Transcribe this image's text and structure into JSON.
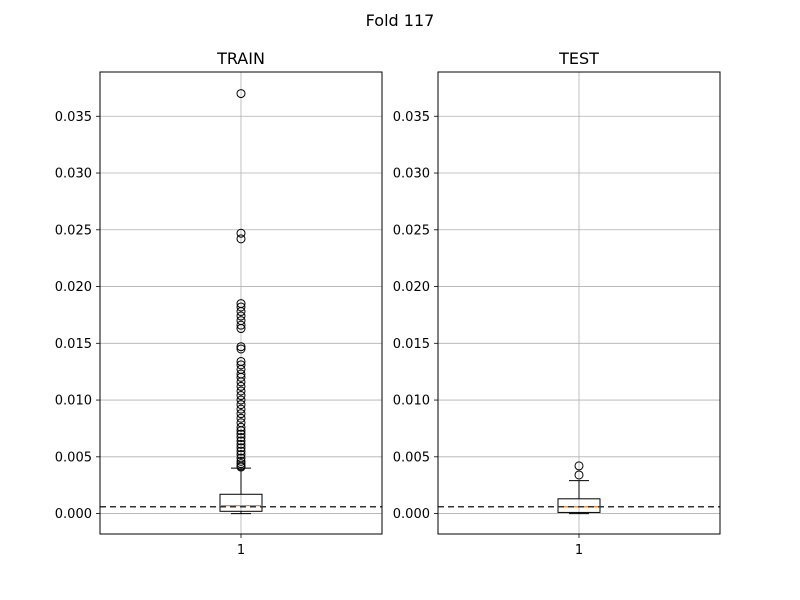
{
  "figure": {
    "title": "Fold 117"
  },
  "colors": {
    "median": "#ff7f0e",
    "box": "#000000",
    "grid": "#b0b0b0",
    "reference_line": "#333333",
    "background": "#ffffff"
  },
  "chart_data": [
    {
      "type": "box",
      "title": "TRAIN",
      "xlabel": "",
      "ylabel": "",
      "categories": [
        "1"
      ],
      "ylim": [
        -0.0018,
        0.0389
      ],
      "yticks": [
        0.0,
        0.005,
        0.01,
        0.015,
        0.02,
        0.025,
        0.03,
        0.035
      ],
      "ytick_labels": [
        "0.000",
        "0.005",
        "0.010",
        "0.015",
        "0.020",
        "0.025",
        "0.030",
        "0.035"
      ],
      "grid": true,
      "reference_line": {
        "y": 0.0006,
        "style": "dashed"
      },
      "box": {
        "whisker_low": 0.0,
        "q1": 0.0002,
        "median": 0.0007,
        "q3": 0.0017,
        "whisker_high": 0.004
      },
      "outliers": [
        0.037,
        0.0247,
        0.0242,
        0.0185,
        0.0182,
        0.0178,
        0.0174,
        0.017,
        0.0166,
        0.0163,
        0.0147,
        0.0145,
        0.0134,
        0.0131,
        0.0127,
        0.0123,
        0.012,
        0.0116,
        0.0112,
        0.0108,
        0.0104,
        0.01,
        0.0096,
        0.0092,
        0.0088,
        0.0084,
        0.008,
        0.0076,
        0.0073,
        0.007,
        0.0067,
        0.0064,
        0.0061,
        0.0058,
        0.0055,
        0.0052,
        0.0049,
        0.0046,
        0.0044,
        0.0042,
        0.0041
      ]
    },
    {
      "type": "box",
      "title": "TEST",
      "xlabel": "",
      "ylabel": "",
      "categories": [
        "1"
      ],
      "ylim": [
        -0.0018,
        0.0389
      ],
      "yticks": [
        0.0,
        0.005,
        0.01,
        0.015,
        0.02,
        0.025,
        0.03,
        0.035
      ],
      "ytick_labels": [
        "0.000",
        "0.005",
        "0.010",
        "0.015",
        "0.020",
        "0.025",
        "0.030",
        "0.035"
      ],
      "grid": true,
      "reference_line": {
        "y": 0.0006,
        "style": "dashed"
      },
      "box": {
        "whisker_low": 0.0,
        "q1": 0.0001,
        "median": 0.0006,
        "q3": 0.0013,
        "whisker_high": 0.0029
      },
      "outliers": [
        0.0042,
        0.0034
      ]
    }
  ]
}
